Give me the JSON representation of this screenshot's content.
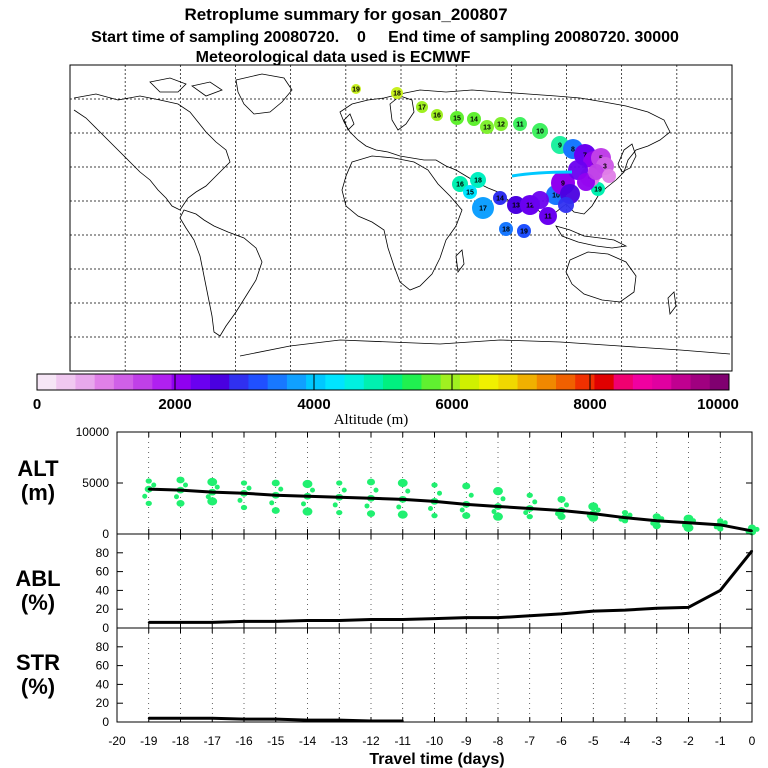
{
  "header": {
    "title": "Retroplume summary for gosan_200807",
    "sampling": "Start time of sampling 20080720.    0     End time of sampling 20080720. 30000",
    "met_data": "Meteorological data used is ECMWF"
  },
  "colorbar": {
    "tick_labels": [
      "0",
      "2000",
      "4000",
      "6000",
      "8000",
      "10000"
    ],
    "label": "Altitude (m)",
    "colors": [
      "#f6e6f6",
      "#f0c8f0",
      "#e8a8ec",
      "#e080e8",
      "#d060e8",
      "#c040e8",
      "#b020f0",
      "#9000f0",
      "#6a00f0",
      "#4a00e0",
      "#3030f0",
      "#2050ff",
      "#1878ff",
      "#10a0ff",
      "#00c8ff",
      "#00e4ff",
      "#00f0e0",
      "#00f0b0",
      "#00f080",
      "#20f050",
      "#60f030",
      "#a0f020",
      "#d0f000",
      "#f0f000",
      "#f0d800",
      "#f0b000",
      "#f08800",
      "#f06000",
      "#f03000",
      "#e00000",
      "#f00070",
      "#f000a0",
      "#e000a0",
      "#c00090",
      "#a00080",
      "#800070"
    ]
  },
  "map": {
    "markers": [
      {
        "label": "19",
        "color": "#c8f020"
      },
      {
        "label": "18",
        "color": "#c8f020"
      },
      {
        "label": "17",
        "color": "#a0f020"
      },
      {
        "label": "16",
        "color": "#a0f020"
      },
      {
        "label": "15",
        "color": "#60f030"
      },
      {
        "label": "14",
        "color": "#60f030"
      },
      {
        "label": "13",
        "color": "#80f030"
      },
      {
        "label": "12",
        "color": "#80f030"
      },
      {
        "label": "11",
        "color": "#40f060"
      },
      {
        "label": "10",
        "color": "#40f060"
      },
      {
        "label": "9",
        "color": "#20f0a0"
      },
      {
        "label": "8",
        "color": "#1878ff"
      },
      {
        "label": "7",
        "color": "#6a00f0"
      },
      {
        "label": "6",
        "color": "#9000f0"
      },
      {
        "label": "5",
        "color": "#c040e8"
      },
      {
        "label": "16",
        "color": "#00f0b0"
      },
      {
        "label": "18",
        "color": "#00f0c0"
      },
      {
        "label": "15",
        "color": "#00e4ff"
      },
      {
        "label": "17",
        "color": "#10a0ff"
      },
      {
        "label": "14",
        "color": "#3030f0"
      },
      {
        "label": "13",
        "color": "#4a00e0"
      },
      {
        "label": "18",
        "color": "#1878ff"
      },
      {
        "label": "19",
        "color": "#2050ff"
      },
      {
        "label": "12",
        "color": "#6a00f0"
      },
      {
        "label": "11",
        "color": "#6a00f0"
      },
      {
        "label": "10",
        "color": "#1878ff"
      },
      {
        "label": "9",
        "color": "#9000f0"
      },
      {
        "label": "19",
        "color": "#00f0b0"
      },
      {
        "label": "4",
        "color": "#e080e8"
      },
      {
        "label": "3",
        "color": "#d060e8"
      }
    ]
  },
  "chart_data": [
    {
      "type": "line",
      "name": "ALT",
      "ylabel_lines": [
        "ALT",
        "(m)"
      ],
      "ylim": [
        0,
        10000
      ],
      "yticks": [
        "0",
        "5000",
        "10000"
      ],
      "x": [
        -19,
        -18,
        -17,
        -16,
        -15,
        -14,
        -13,
        -12,
        -11,
        -10,
        -9,
        -8,
        -7,
        -6,
        -5,
        -4,
        -3,
        -2,
        -1,
        0
      ],
      "values": [
        4400,
        4300,
        4100,
        4000,
        3800,
        3700,
        3600,
        3500,
        3400,
        3200,
        2900,
        2700,
        2500,
        2300,
        2000,
        1600,
        1300,
        1100,
        900,
        300
      ],
      "spread": {
        "color": "#20f070",
        "upper": [
          5200,
          5300,
          5100,
          5000,
          5000,
          4900,
          5000,
          5100,
          5000,
          4800,
          4700,
          4200,
          3800,
          3400,
          2700,
          2100,
          1700,
          1500,
          1300,
          600
        ],
        "lower": [
          3000,
          3000,
          3200,
          2600,
          2300,
          2200,
          2100,
          2000,
          1900,
          1800,
          1800,
          1700,
          1700,
          1700,
          1600,
          1300,
          800,
          600,
          500,
          200
        ]
      }
    },
    {
      "type": "line",
      "name": "ABL",
      "ylabel_lines": [
        "ABL",
        "(%)"
      ],
      "ylim": [
        0,
        100
      ],
      "yticks": [
        "0",
        "20",
        "40",
        "60",
        "80"
      ],
      "x": [
        -19,
        -18,
        -17,
        -16,
        -15,
        -14,
        -13,
        -12,
        -11,
        -10,
        -9,
        -8,
        -7,
        -6,
        -5,
        -4,
        -3,
        -2,
        -1,
        0
      ],
      "values": [
        6,
        6,
        6,
        7,
        7,
        8,
        8,
        9,
        9,
        10,
        11,
        11,
        13,
        15,
        18,
        19,
        21,
        22,
        40,
        82
      ]
    },
    {
      "type": "line",
      "name": "STR",
      "ylabel_lines": [
        "STR",
        "(%)"
      ],
      "ylim": [
        0,
        100
      ],
      "yticks": [
        "0",
        "20",
        "40",
        "60",
        "80"
      ],
      "x": [
        -19,
        -18,
        -17,
        -16,
        -15,
        -14,
        -13,
        -12,
        -11
      ],
      "values": [
        4,
        4,
        4,
        3,
        3,
        2,
        2,
        1,
        1
      ]
    }
  ],
  "xaxis": {
    "ticks": [
      "-20",
      "-19",
      "-18",
      "-17",
      "-16",
      "-15",
      "-14",
      "-13",
      "-12",
      "-11",
      "-10",
      "-9",
      "-8",
      "-7",
      "-6",
      "-5",
      "-4",
      "-3",
      "-2",
      "-1",
      "0"
    ],
    "xlim": [
      -20,
      0
    ],
    "title": "Travel time (days)"
  }
}
